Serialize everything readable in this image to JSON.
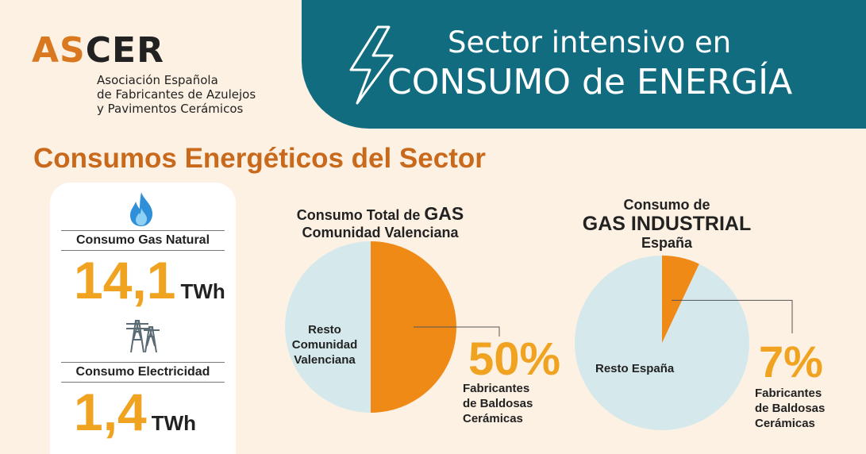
{
  "logo": {
    "name": "ASCER",
    "name_highlight": "AS",
    "name_rest": "CER",
    "subtitle_line1": "Asociación Española",
    "subtitle_line2": "de Fabricantes de Azulejos",
    "subtitle_line3": "y Pavimentos Cerámicos"
  },
  "banner": {
    "line1": "Sector intensivo en",
    "line2": "CONSUMO de ENERGÍA",
    "icon": "lightning-bolt-icon"
  },
  "section_title": "Consumos Energéticos del Sector",
  "summary": {
    "gas": {
      "icon": "flame-icon",
      "label": "Consumo Gas Natural",
      "value": "14,1",
      "unit": "TWh"
    },
    "electricity": {
      "icon": "power-tower-icon",
      "label": "Consumo Electricidad",
      "value": "1,4",
      "unit": "TWh"
    }
  },
  "colors": {
    "orange": "#ef8a17",
    "light_blue": "#d5e9ec",
    "teal": "#126c7f",
    "gold": "#f0a321",
    "title_orange": "#c8691c"
  },
  "chart_data": [
    {
      "type": "pie",
      "title_line1_prefix": "Consumo Total de ",
      "title_line1_emphasis": "GAS",
      "title_line2": "Comunidad Valenciana",
      "slices": [
        {
          "label": "Fabricantes de Baldosas Cerámicas",
          "value": 50,
          "display": "50%"
        },
        {
          "label": "Resto Comunidad Valenciana",
          "value": 50
        }
      ]
    },
    {
      "type": "pie",
      "title_line1": "Consumo de",
      "title_line2": "GAS INDUSTRIAL",
      "title_line3": "España",
      "slices": [
        {
          "label": "Fabricantes de Baldosas Cerámicas",
          "value": 7,
          "display": "7%"
        },
        {
          "label": "Resto España",
          "value": 93
        }
      ]
    }
  ],
  "labels": {
    "pie1_highlight_line1": "Fabricantes",
    "pie1_highlight_line2": "de Baldosas",
    "pie1_highlight_line3": "Cerámicas",
    "pie1_rest_line1": "Resto",
    "pie1_rest_line2": "Comunidad",
    "pie1_rest_line3": "Valenciana",
    "pie2_highlight_line1": "Fabricantes",
    "pie2_highlight_line2": "de Baldosas",
    "pie2_highlight_line3": "Cerámicas",
    "pie2_rest": "Resto España"
  }
}
